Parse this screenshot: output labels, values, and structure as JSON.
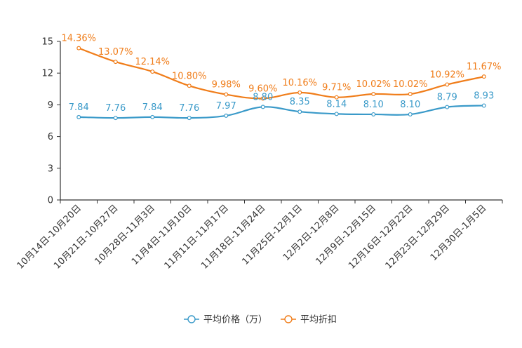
{
  "chart_data": {
    "type": "line",
    "categories": [
      "10月14日-10月20日",
      "10月21日-10月27日",
      "10月28日-11月3日",
      "11月4日-11月10日",
      "11月11日-11月17日",
      "11月18日-11月24日",
      "11月25日-12月1日",
      "12月2日-12月8日",
      "12月9日-12月15日",
      "12月16日-12月22日",
      "12月23日-12月29日",
      "12月30日-1月5日"
    ],
    "series": [
      {
        "name": "平均价格（万）",
        "color": "#3a9ac9",
        "values": [
          7.84,
          7.76,
          7.84,
          7.76,
          7.97,
          8.8,
          8.35,
          8.14,
          8.1,
          8.1,
          8.79,
          8.93
        ],
        "labels": [
          "7.84",
          "7.76",
          "7.84",
          "7.76",
          "7.97",
          "8.80",
          "8.35",
          "8.14",
          "8.10",
          "8.10",
          "8.79",
          "8.93"
        ]
      },
      {
        "name": "平均折扣",
        "color": "#f07d1a",
        "values": [
          14.36,
          13.07,
          12.14,
          10.8,
          9.98,
          9.6,
          10.16,
          9.71,
          10.02,
          10.02,
          10.92,
          11.67
        ],
        "labels": [
          "14.36%",
          "13.07%",
          "12.14%",
          "10.80%",
          "9.98%",
          "9.60%",
          "10.16%",
          "9.71%",
          "10.02%",
          "10.02%",
          "10.92%",
          "11.67%"
        ]
      }
    ],
    "ylim": [
      0,
      15
    ],
    "yticks": [
      "0",
      "3",
      "6",
      "9",
      "12",
      "15"
    ],
    "legend_position": "bottom-center"
  }
}
